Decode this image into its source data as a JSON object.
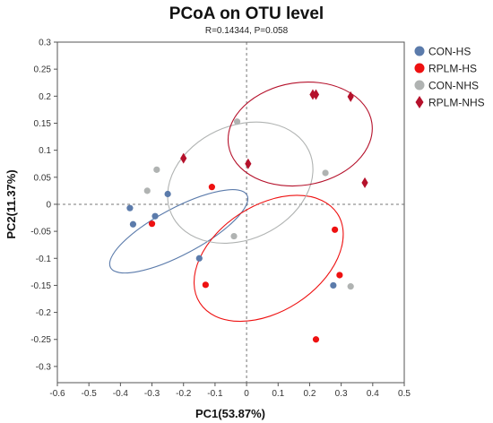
{
  "chart_data": {
    "type": "scatter",
    "title": "PCoA on OTU level",
    "subtitle": "R=0.14344, P=0.058",
    "xlabel": "PC1(53.87%)",
    "ylabel": "PC2(11.37%)",
    "xlim": [
      -0.6,
      0.5
    ],
    "ylim": [
      -0.33,
      0.3
    ],
    "x_ticks": [
      "-0.6",
      "-0.5",
      "-0.4",
      "-0.3",
      "-0.2",
      "-0.1",
      "0",
      "0.1",
      "0.2",
      "0.3",
      "0.4",
      "0.5"
    ],
    "y_ticks": [
      "0.3",
      "0.25",
      "0.2",
      "0.15",
      "0.1",
      "0.05",
      "0",
      "-0.05",
      "-0.1",
      "-0.15",
      "-0.2",
      "-0.25",
      "-0.3"
    ],
    "legend_position": "top-right",
    "series": [
      {
        "name": "CON-HS",
        "marker": "circle",
        "color": "#5b7bab",
        "ellipse": {
          "center": [
            -0.215,
            -0.05
          ],
          "rx": 0.245,
          "ry": 0.043,
          "angle_deg": -28
        },
        "points": [
          {
            "x": -0.37,
            "y": -0.007
          },
          {
            "x": -0.36,
            "y": -0.037
          },
          {
            "x": -0.29,
            "y": -0.022
          },
          {
            "x": -0.25,
            "y": 0.019
          },
          {
            "x": -0.15,
            "y": -0.1
          },
          {
            "x": 0.275,
            "y": -0.15
          }
        ]
      },
      {
        "name": "RPLM-HS",
        "marker": "circle",
        "color": "#ee1111",
        "ellipse": {
          "center": [
            0.07,
            -0.1
          ],
          "rx": 0.26,
          "ry": 0.098,
          "angle_deg": -33
        },
        "points": [
          {
            "x": -0.3,
            "y": -0.036
          },
          {
            "x": -0.11,
            "y": 0.032
          },
          {
            "x": -0.13,
            "y": -0.149
          },
          {
            "x": 0.28,
            "y": -0.047
          },
          {
            "x": 0.295,
            "y": -0.131
          },
          {
            "x": 0.22,
            "y": -0.25
          }
        ]
      },
      {
        "name": "CON-NHS",
        "marker": "circle",
        "color": "#b0b3b2",
        "ellipse": {
          "center": [
            -0.02,
            0.04
          ],
          "rx": 0.24,
          "ry": 0.105,
          "angle_deg": -25
        },
        "points": [
          {
            "x": -0.285,
            "y": 0.064
          },
          {
            "x": -0.315,
            "y": 0.025
          },
          {
            "x": -0.03,
            "y": 0.153
          },
          {
            "x": 0.25,
            "y": 0.058
          },
          {
            "x": -0.04,
            "y": -0.059
          },
          {
            "x": 0.33,
            "y": -0.152
          }
        ]
      },
      {
        "name": "RPLM-NHS",
        "marker": "diamond",
        "color": "#b5112b",
        "ellipse": {
          "center": [
            0.17,
            0.13
          ],
          "rx": 0.23,
          "ry": 0.095,
          "angle_deg": -9
        },
        "points": [
          {
            "x": -0.2,
            "y": 0.085
          },
          {
            "x": 0.005,
            "y": 0.075
          },
          {
            "x": 0.21,
            "y": 0.203
          },
          {
            "x": 0.22,
            "y": 0.203
          },
          {
            "x": 0.33,
            "y": 0.199
          },
          {
            "x": 0.375,
            "y": 0.04
          }
        ]
      }
    ]
  }
}
